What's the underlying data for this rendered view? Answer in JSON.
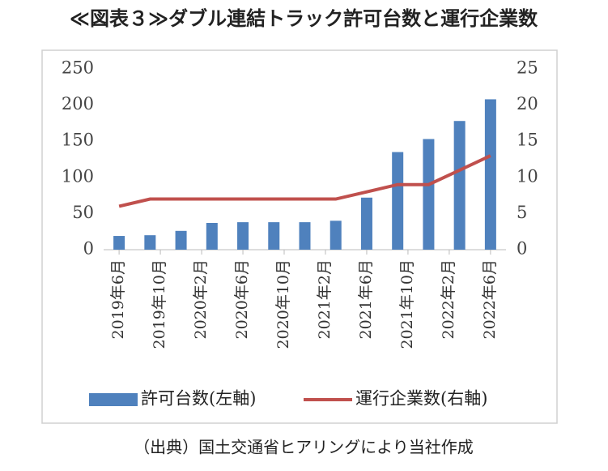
{
  "chart_data": {
    "type": "bar_line",
    "title": "≪図表３≫ダブル連結トラック許可台数と運行企業数",
    "source": "（出典）国土交通省ヒアリングにより当社作成",
    "xticks": [
      "2019年6月",
      "2019年10月",
      "2020年2月",
      "2020年6月",
      "2020年10月",
      "2021年2月",
      "2021年6月",
      "2021年10月",
      "2022年2月",
      "2022年6月"
    ],
    "series": [
      {
        "name": "許可台数(左軸)",
        "color": "#4f81bd",
        "type": "bar",
        "axis": "y",
        "values": [
          19,
          20,
          26,
          37,
          38,
          38,
          38,
          40,
          72,
          135,
          153,
          178,
          208
        ]
      },
      {
        "name": "運行企業数(右軸)",
        "color": "#c0504d",
        "type": "line",
        "axis": "y2",
        "values": [
          6,
          7,
          7,
          7,
          7,
          7,
          7,
          7,
          8,
          9,
          9,
          11,
          13
        ]
      }
    ],
    "ylim": [
      0,
      250
    ],
    "yticks": [
      0,
      50,
      100,
      150,
      200,
      250
    ],
    "y2lim": [
      0,
      25
    ],
    "y2ticks": [
      0,
      5,
      10,
      15,
      20,
      25
    ]
  }
}
